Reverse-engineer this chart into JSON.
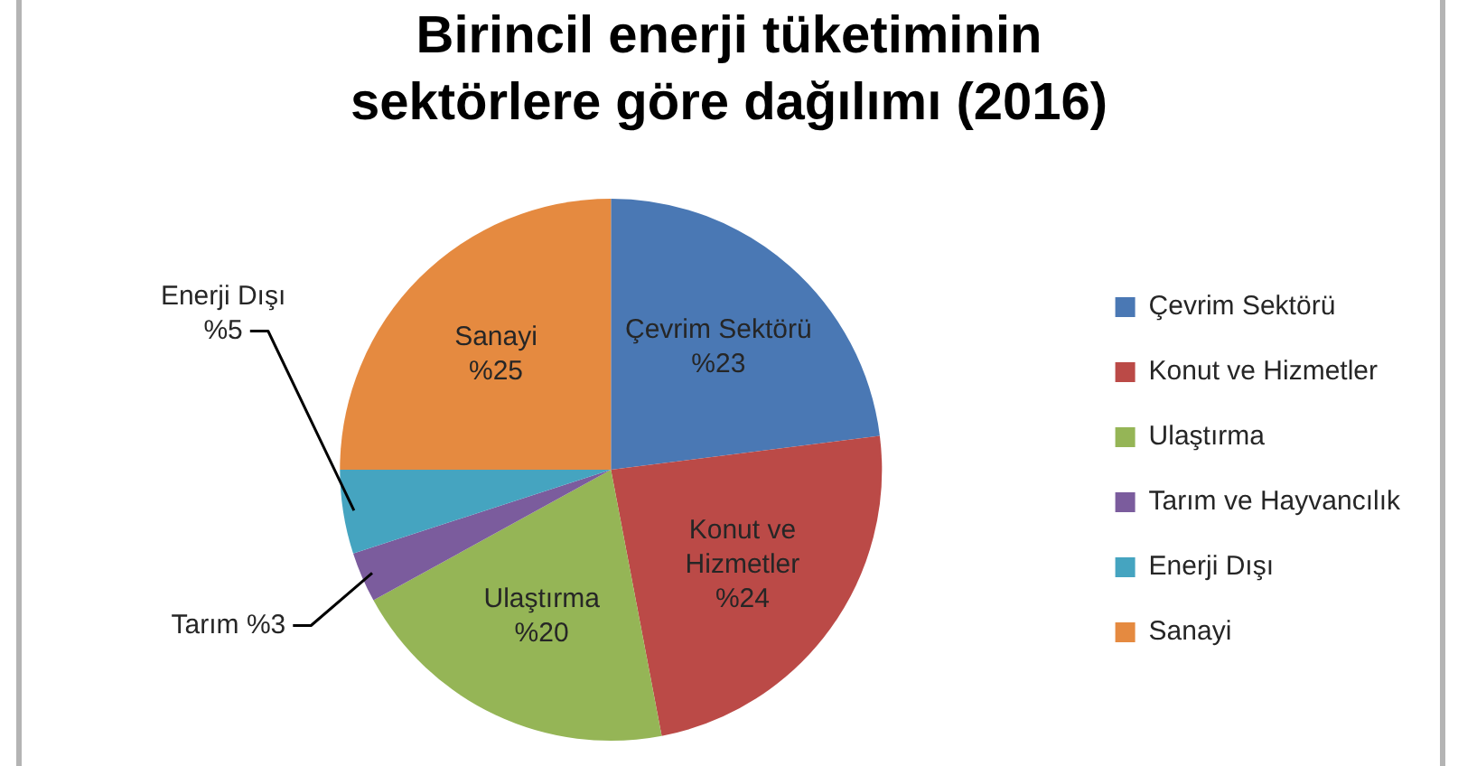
{
  "chart_data": {
    "type": "pie",
    "title": "Birincil enerji tüketiminin sektörlere göre dağılımı (2016)",
    "categories": [
      "Çevrim Sektörü",
      "Konut ve Hizmetler",
      "Ulaştırma",
      "Tarım ve Hayvancılık",
      "Enerji Dışı",
      "Sanayi"
    ],
    "values": [
      23,
      24,
      20,
      3,
      5,
      25
    ],
    "colors": [
      "#4a78b4",
      "#bb4a47",
      "#95b556",
      "#7b5c9d",
      "#45a4c0",
      "#e58a40"
    ],
    "value_labels": [
      "Çevrim Sektörü\n%23",
      "Konut ve\nHizmetler\n%24",
      "Ulaştırma\n%20",
      "Tarım %3",
      "Enerji Dışı\n%5",
      "Sanayi\n%25"
    ],
    "legend": "right"
  }
}
